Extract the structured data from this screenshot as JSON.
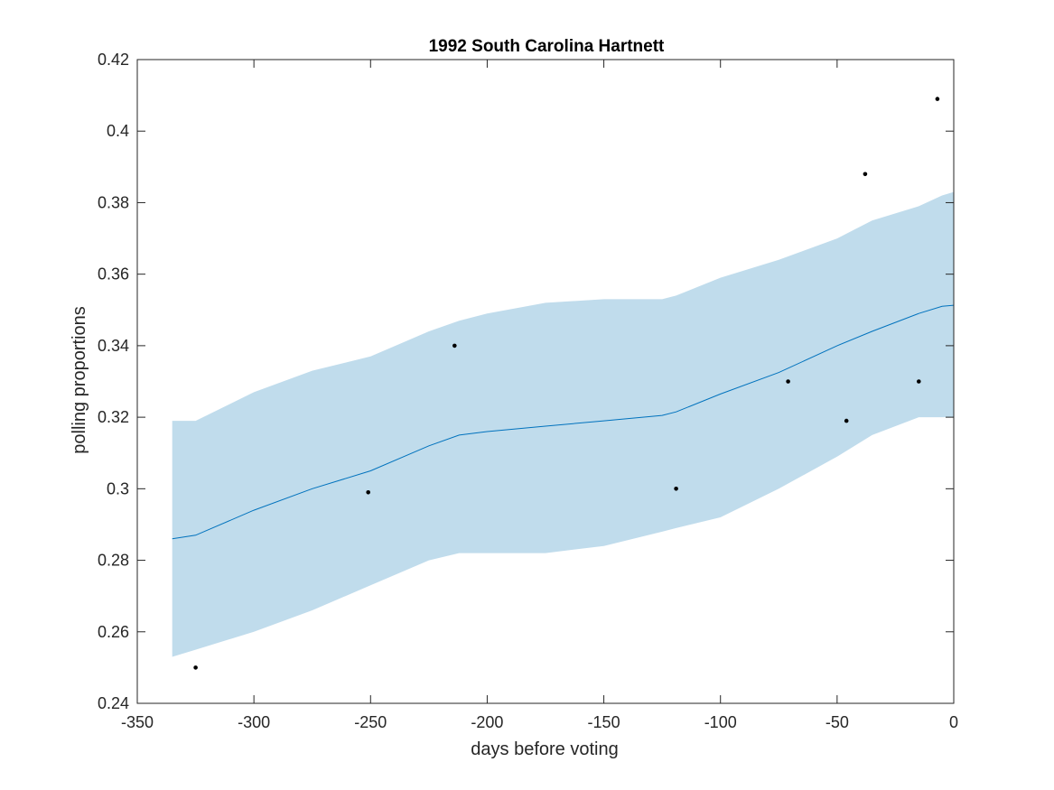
{
  "chart_data": {
    "type": "line",
    "title": "1992 South Carolina Hartnett",
    "xlabel": "days before voting",
    "ylabel": "polling proportions",
    "xlim": [
      -350,
      0
    ],
    "ylim": [
      0.24,
      0.42
    ],
    "xticks": [
      -350,
      -300,
      -250,
      -200,
      -150,
      -100,
      -50,
      0
    ],
    "xtick_labels": [
      "-350",
      "-300",
      "-250",
      "-200",
      "-150",
      "-100",
      "-50",
      "0"
    ],
    "yticks": [
      0.24,
      0.26,
      0.28,
      0.3,
      0.32,
      0.34,
      0.36,
      0.38,
      0.4,
      0.42
    ],
    "ytick_labels": [
      "0.24",
      "0.26",
      "0.28",
      "0.3",
      "0.32",
      "0.34",
      "0.36",
      "0.38",
      "0.4",
      "0.42"
    ],
    "grid": false,
    "box": true,
    "colors": {
      "band": "#c0dcec",
      "trend": "#0072bd",
      "points": "#000000",
      "axes": "#262626"
    },
    "trend": {
      "x": [
        -335,
        -325,
        -300,
        -275,
        -250,
        -225,
        -212,
        -200,
        -175,
        -150,
        -125,
        -119,
        -100,
        -75,
        -50,
        -35,
        -15,
        -5,
        0
      ],
      "y": [
        0.286,
        0.287,
        0.294,
        0.3,
        0.305,
        0.312,
        0.315,
        0.316,
        0.3175,
        0.319,
        0.3205,
        0.3215,
        0.3265,
        0.3325,
        0.34,
        0.344,
        0.349,
        0.351,
        0.3513
      ]
    },
    "band": {
      "x": [
        -335,
        -325,
        -300,
        -275,
        -250,
        -225,
        -212,
        -200,
        -175,
        -150,
        -125,
        -119,
        -100,
        -75,
        -50,
        -35,
        -15,
        -5,
        0
      ],
      "lower": [
        0.253,
        0.255,
        0.26,
        0.266,
        0.273,
        0.28,
        0.282,
        0.282,
        0.282,
        0.284,
        0.288,
        0.289,
        0.292,
        0.3,
        0.309,
        0.315,
        0.32,
        0.32,
        0.32
      ],
      "upper": [
        0.319,
        0.319,
        0.327,
        0.333,
        0.337,
        0.344,
        0.347,
        0.349,
        0.352,
        0.353,
        0.353,
        0.354,
        0.359,
        0.364,
        0.37,
        0.375,
        0.379,
        0.382,
        0.383
      ]
    },
    "points": {
      "x": [
        -325,
        -251,
        -214,
        -119,
        -71,
        -46,
        -38,
        -15,
        -7
      ],
      "y": [
        0.25,
        0.299,
        0.34,
        0.3,
        0.33,
        0.319,
        0.388,
        0.33,
        0.409
      ]
    }
  }
}
